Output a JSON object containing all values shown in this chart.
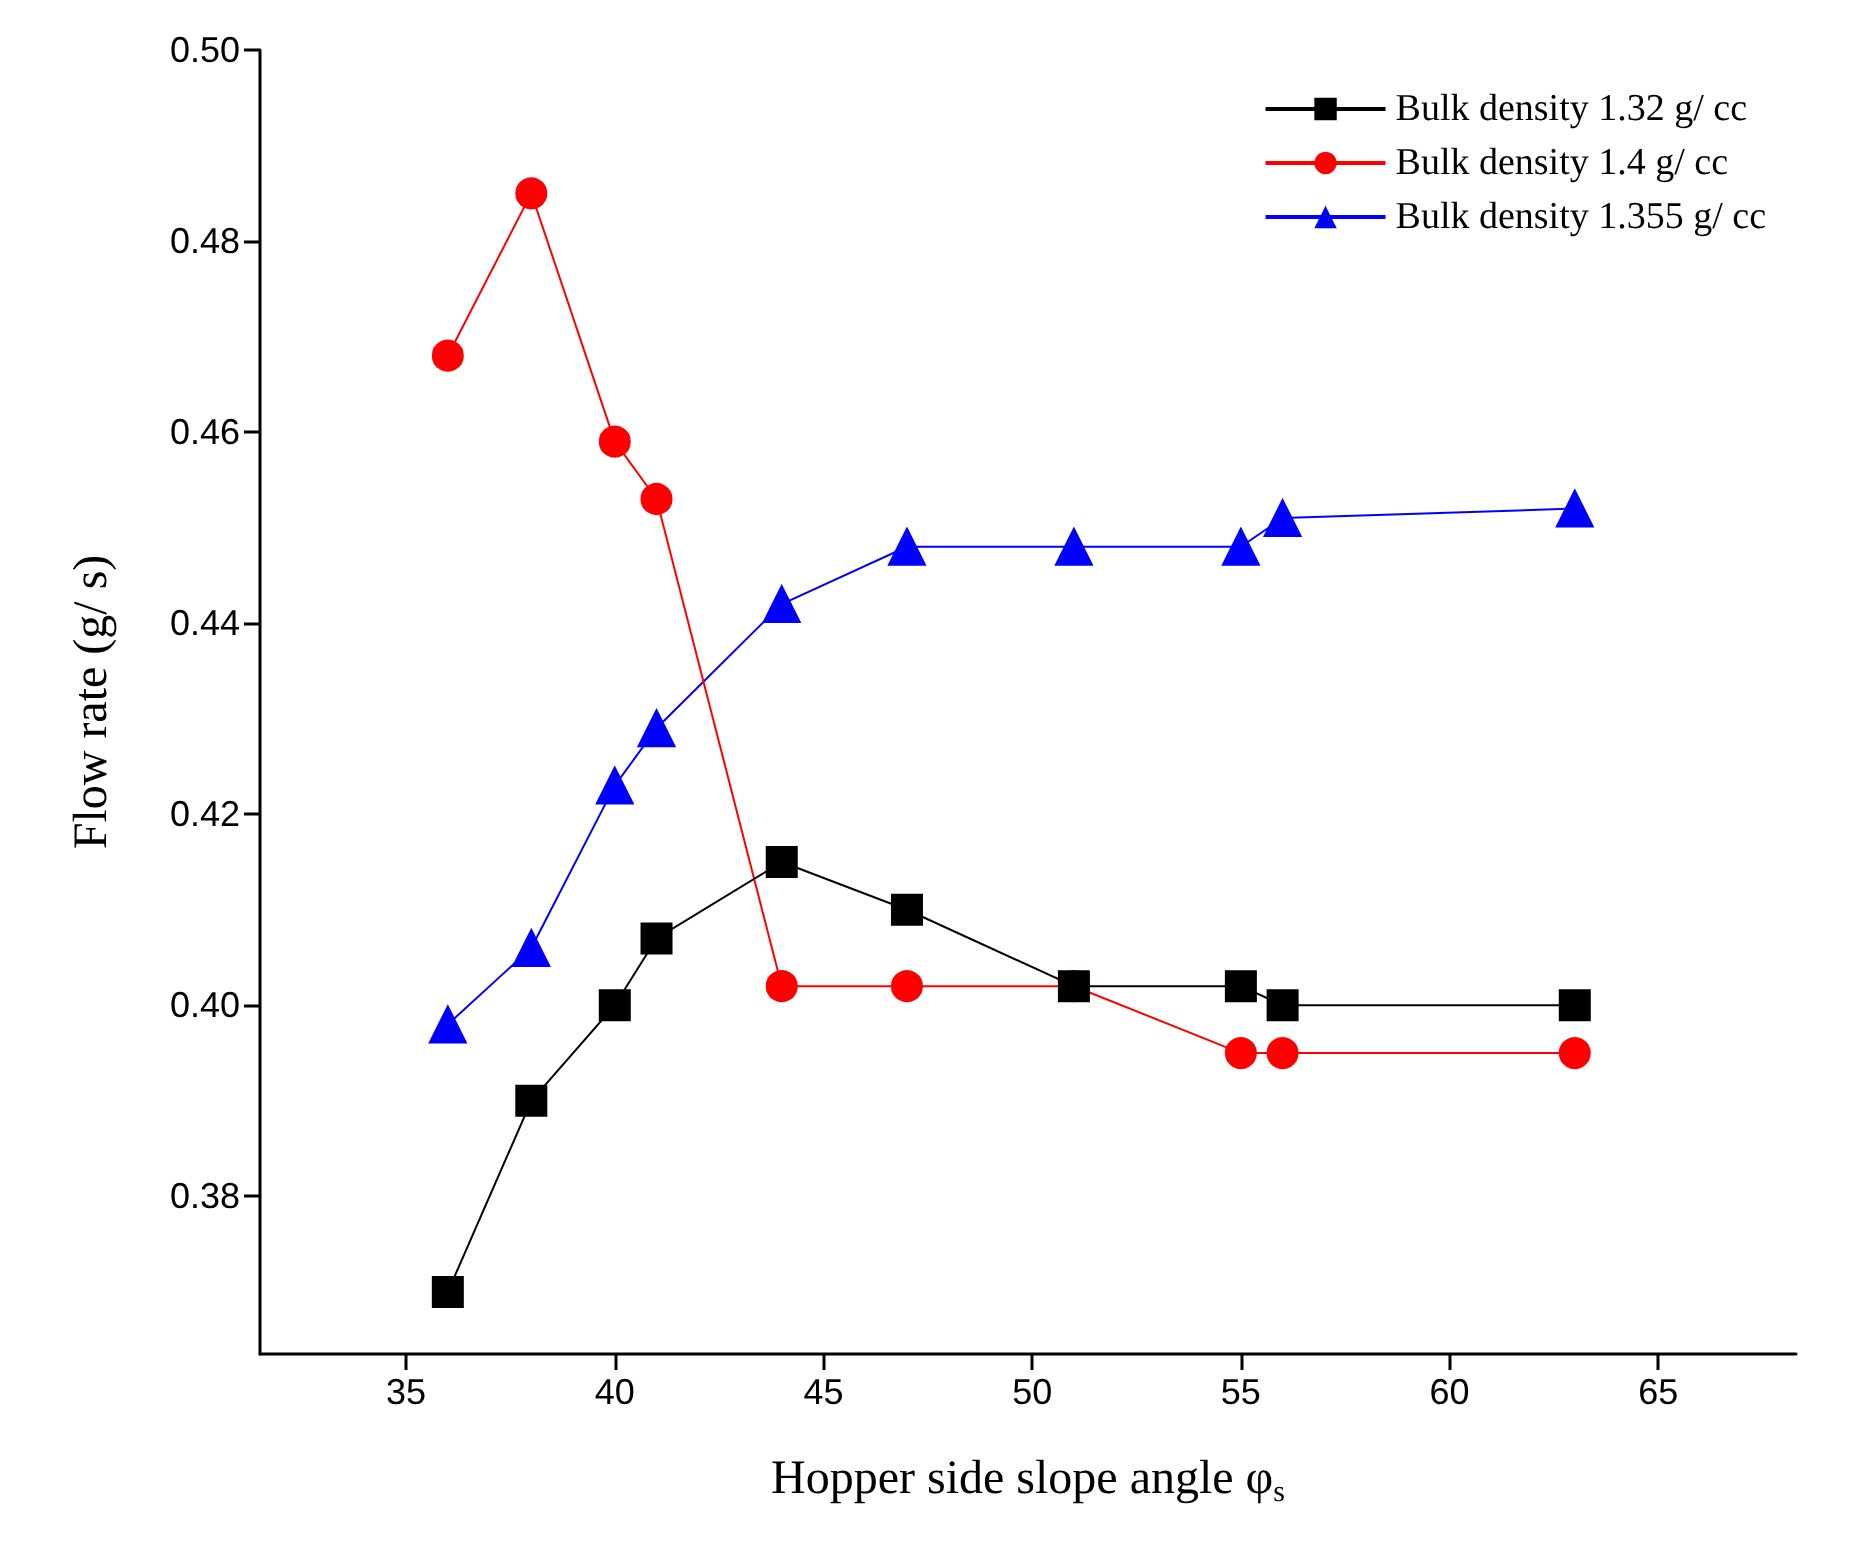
{
  "chart_data": {
    "type": "line",
    "xlabel": "Hopper side slope angle φ$_{s}$",
    "ylabel": "Flow rate (g/ s)",
    "xlim": [
      31.5,
      68.3
    ],
    "xticks": [
      35,
      40,
      45,
      50,
      55,
      60,
      65
    ],
    "ylim": [
      0.3635,
      0.5
    ],
    "yticks": [
      0.38,
      {
        "value": 0.4,
        "label": "0.40"
      },
      0.42,
      0.44,
      0.46,
      0.48,
      {
        "value": 0.5,
        "label": "0.50"
      }
    ],
    "legend": "top right",
    "grid": false,
    "series": [
      {
        "name": "Bulk density 1.32 g/ cc",
        "color": "#000000",
        "marker": "square",
        "x": [
          36,
          38,
          40,
          41,
          44,
          47,
          51,
          55,
          56,
          63
        ],
        "values": [
          0.37,
          0.39,
          0.4,
          0.407,
          0.415,
          0.41,
          0.402,
          0.402,
          0.4,
          0.4
        ]
      },
      {
        "name": "Bulk density 1.4 g/ cc",
        "color": "#ff0000",
        "marker": "circle",
        "x": [
          36,
          38,
          40,
          41,
          44,
          47,
          51,
          55,
          56,
          63
        ],
        "values": [
          0.468,
          0.485,
          0.459,
          0.453,
          0.402,
          0.402,
          0.402,
          0.395,
          0.395,
          0.395
        ]
      },
      {
        "name": "Bulk density 1.355 g/ cc",
        "color": "#0000ff",
        "marker": "triangle",
        "x": [
          36,
          38,
          40,
          41,
          44,
          47,
          51,
          55,
          56,
          63
        ],
        "values": [
          0.398,
          0.406,
          0.423,
          0.429,
          0.442,
          0.448,
          0.448,
          0.448,
          0.451,
          0.452
        ]
      }
    ]
  }
}
